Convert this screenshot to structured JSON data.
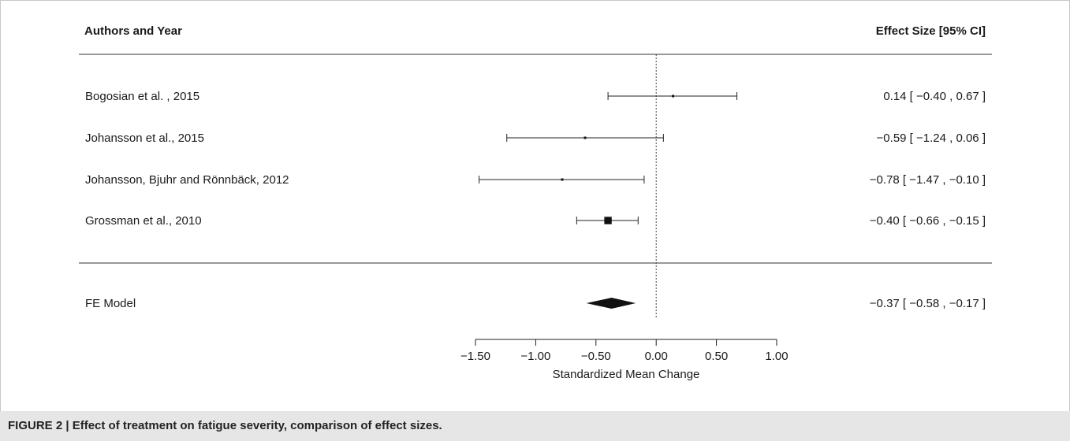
{
  "header": {
    "left": "Authors and Year",
    "right": "Effect Size [95% CI]"
  },
  "caption": "FIGURE 2 | Effect of treatment on fatigue severity, comparison of effect sizes.",
  "chart_data": {
    "type": "forest",
    "xlabel": "Standardized Mean Change",
    "xlim": [
      -1.5,
      1.0
    ],
    "ticks": [
      -1.5,
      -1.0,
      -0.5,
      0.0,
      0.5,
      1.0
    ],
    "tick_labels": [
      "−1.50",
      "−1.00",
      "−0.50",
      "0.00",
      "0.50",
      "1.00"
    ],
    "reference_line": 0.0,
    "studies": [
      {
        "label": "Bogosian et al. , 2015",
        "estimate": 0.14,
        "lower": -0.4,
        "upper": 0.67,
        "weight": 0.05,
        "text": "0.14 [ −0.40 ,  0.67 ]"
      },
      {
        "label": "Johansson et al., 2015",
        "estimate": -0.59,
        "lower": -1.24,
        "upper": 0.06,
        "weight": 0.035,
        "text": "−0.59 [ −1.24 ,  0.06 ]"
      },
      {
        "label": "Johansson, Bjuhr and Rönnbäck, 2012",
        "estimate": -0.78,
        "lower": -1.47,
        "upper": -0.1,
        "weight": 0.03,
        "text": "−0.78 [ −1.47 , −0.10 ]"
      },
      {
        "label": "Grossman et al., 2010",
        "estimate": -0.4,
        "lower": -0.66,
        "upper": -0.15,
        "weight": 0.88,
        "text": "−0.40 [ −0.66 , −0.15 ]"
      }
    ],
    "summary": {
      "label": "FE Model",
      "estimate": -0.37,
      "lower": -0.58,
      "upper": -0.17,
      "text": "−0.37 [ −0.58 , −0.17 ]"
    }
  }
}
